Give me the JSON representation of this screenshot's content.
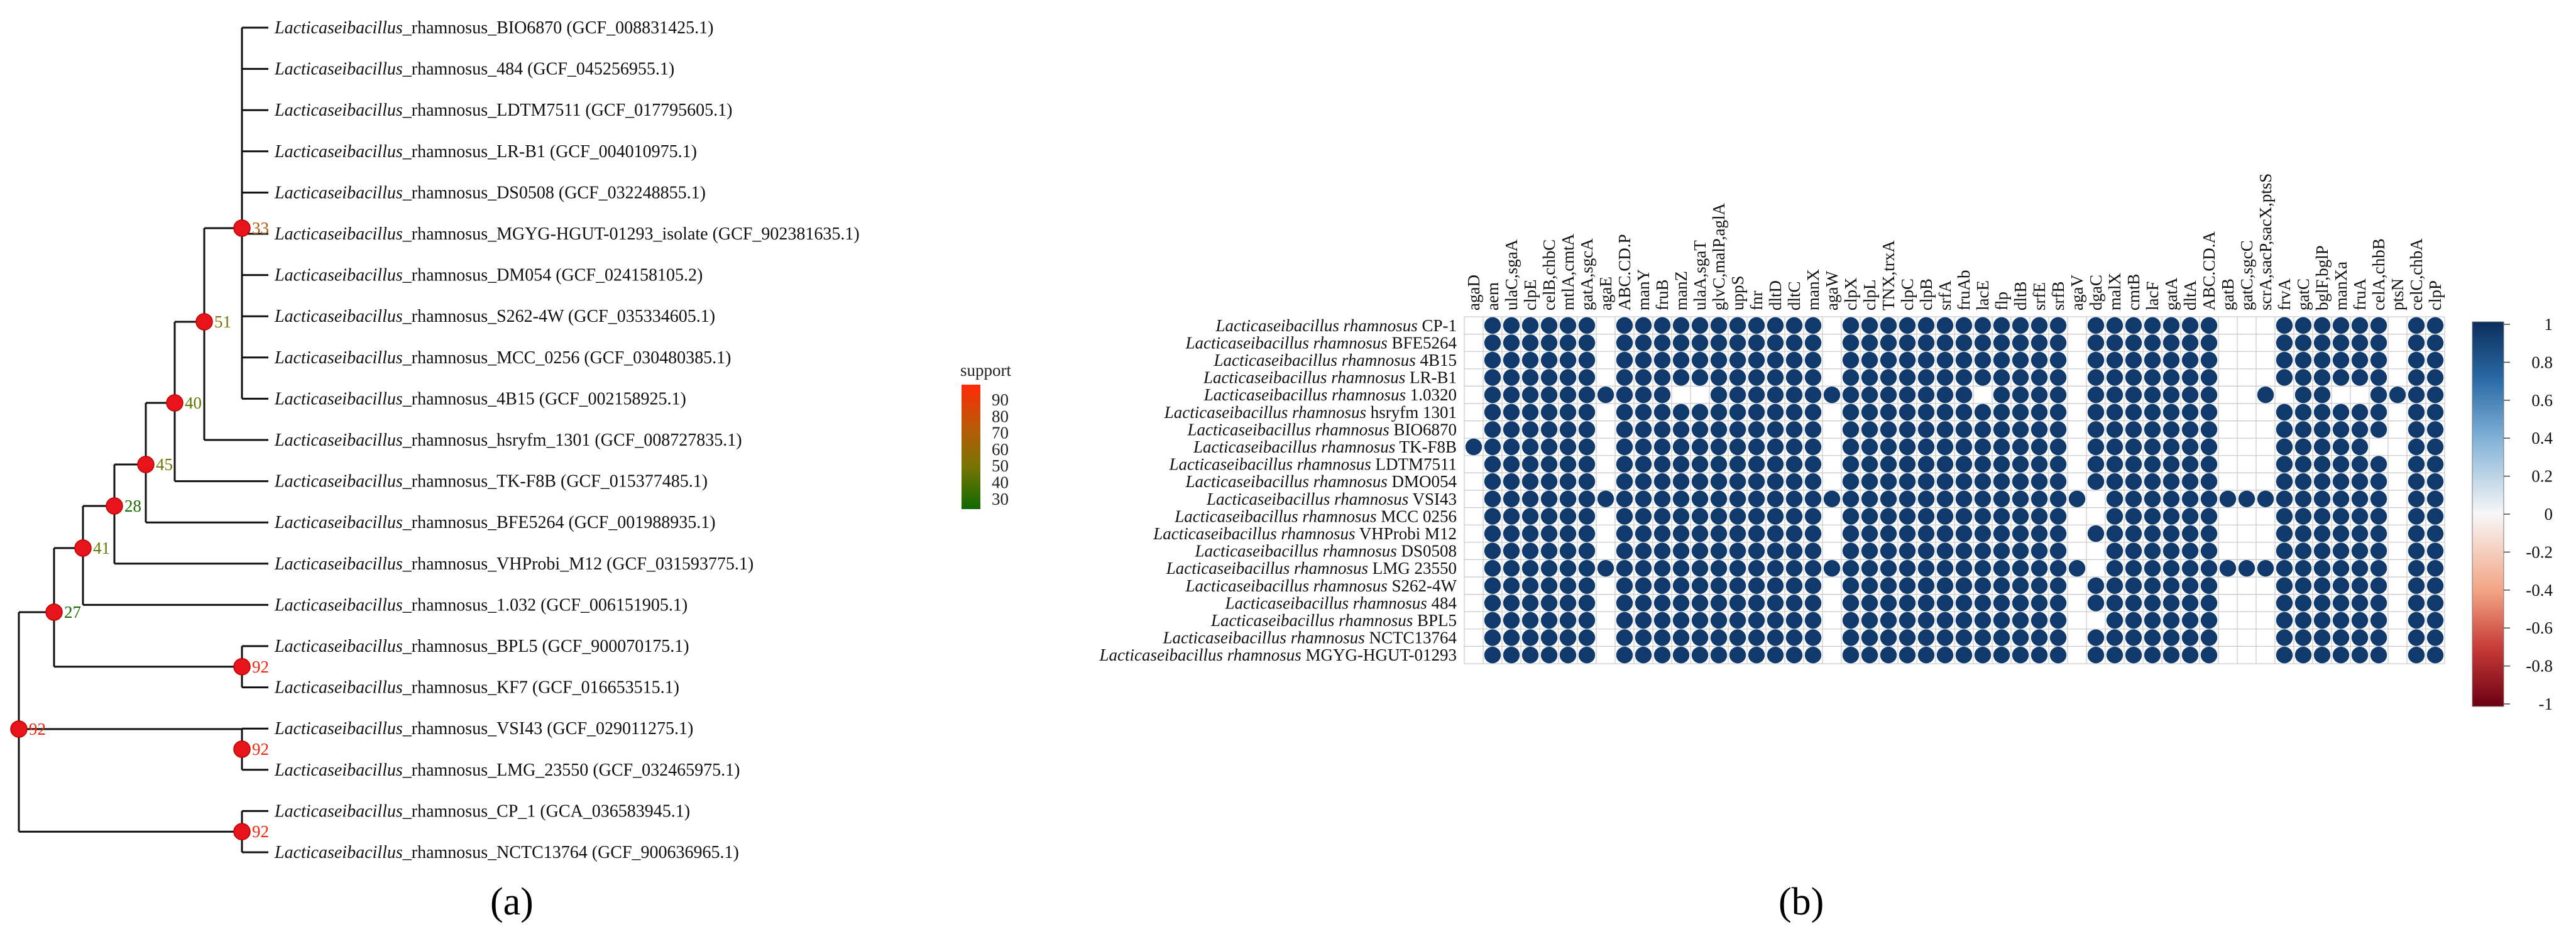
{
  "panel_a": {
    "label": "(a)",
    "support_legend": {
      "title": "support",
      "ticks": [
        "90",
        "80",
        "70",
        "60",
        "50",
        "40",
        "30"
      ],
      "colors": [
        "#f5240a",
        "#cc4a08",
        "#a96a05",
        "#866f04",
        "#5e7a03",
        "#357f02",
        "#1a6e01"
      ]
    },
    "tips": [
      {
        "genus": "Lacticaseibacillus",
        "name": "_rhamnosus_BIO6870",
        "acc": " (GCF_008831425.1)"
      },
      {
        "genus": "Lacticaseibacillus",
        "name": "_rhamnosus_484",
        "acc": " (GCF_045256955.1)"
      },
      {
        "genus": "Lacticaseibacillus",
        "name": "_rhamnosus_LDTM7511",
        "acc": " (GCF_017795605.1)"
      },
      {
        "genus": "Lacticaseibacillus",
        "name": "_rhamnosus_LR-B1",
        "acc": " (GCF_004010975.1)"
      },
      {
        "genus": "Lacticaseibacillus",
        "name": "_rhamnosus_DS0508",
        "acc": " (GCF_032248855.1)"
      },
      {
        "genus": "Lacticaseibacillus",
        "name": "_rhamnosus_MGYG-HGUT-01293_isolate",
        "acc": " (GCF_902381635.1)"
      },
      {
        "genus": "Lacticaseibacillus",
        "name": "_rhamnosus_DM054",
        "acc": " (GCF_024158105.2)"
      },
      {
        "genus": "Lacticaseibacillus",
        "name": "_rhamnosus_S262-4W",
        "acc": " (GCF_035334605.1)"
      },
      {
        "genus": "Lacticaseibacillus",
        "name": "_rhamnosus_MCC_0256",
        "acc": " (GCF_030480385.1)"
      },
      {
        "genus": "Lacticaseibacillus",
        "name": "_rhamnosus_4B15",
        "acc": " (GCF_002158925.1)"
      },
      {
        "genus": "Lacticaseibacillus",
        "name": "_rhamnosus_hsryfm_1301",
        "acc": " (GCF_008727835.1)"
      },
      {
        "genus": "Lacticaseibacillus",
        "name": "_rhamnosus_TK-F8B",
        "acc": " (GCF_015377485.1)"
      },
      {
        "genus": "Lacticaseibacillus",
        "name": "_rhamnosus_BFE5264",
        "acc": " (GCF_001988935.1)"
      },
      {
        "genus": "Lacticaseibacillus",
        "name": "_rhamnosus_VHProbi_M12",
        "acc": " (GCF_031593775.1)"
      },
      {
        "genus": "Lacticaseibacillus",
        "name": "_rhamnosus_1.032",
        "acc": " (GCF_006151905.1)"
      },
      {
        "genus": "Lacticaseibacillus",
        "name": "_rhamnosus_BPL5",
        "acc": " (GCF_900070175.1)"
      },
      {
        "genus": "Lacticaseibacillus",
        "name": "_rhamnosus_KF7",
        "acc": " (GCF_016653515.1)"
      },
      {
        "genus": "Lacticaseibacillus",
        "name": "_rhamnosus_VSI43",
        "acc": " (GCF_029011275.1)"
      },
      {
        "genus": "Lacticaseibacillus",
        "name": "_rhamnosus_LMG_23550",
        "acc": " (GCF_032465975.1)"
      },
      {
        "genus": "Lacticaseibacillus",
        "name": "_rhamnosus_CP_1",
        "acc": " (GCA_036583945.1)"
      },
      {
        "genus": "Lacticaseibacillus",
        "name": "_rhamnosus_NCTC13764",
        "acc": " (GCF_900636965.1)"
      }
    ],
    "nodes": [
      {
        "id": "n33",
        "support": "33",
        "color": "#b0580f"
      },
      {
        "id": "n51",
        "support": "51",
        "color": "#867005"
      },
      {
        "id": "n40",
        "support": "40",
        "color": "#5e7a03"
      },
      {
        "id": "n45",
        "support": "45",
        "color": "#6f7a04"
      },
      {
        "id": "n28",
        "support": "28",
        "color": "#1a6e01"
      },
      {
        "id": "n41",
        "support": "41",
        "color": "#5e7a03"
      },
      {
        "id": "n27",
        "support": "27",
        "color": "#1a6e01"
      },
      {
        "id": "n92a",
        "support": "92",
        "color": "#f5240a"
      },
      {
        "id": "n92b",
        "support": "92",
        "color": "#f5240a"
      },
      {
        "id": "n92c",
        "support": "92",
        "color": "#f5240a"
      },
      {
        "id": "n92root",
        "support": "92",
        "color": "#f5240a"
      }
    ],
    "node_marker_color": "#e8141c"
  },
  "panel_b": {
    "label": "(b)",
    "genus": "Lacticaseibacillus rhamnosus",
    "rows": [
      "CP-1",
      "BFE5264",
      "4B15",
      "LR-B1",
      "1.0320",
      "hsryfm 1301",
      "BIO6870",
      "TK-F8B",
      "LDTM7511",
      "DMO054",
      "VSI43",
      "MCC 0256",
      "VHProbi M12",
      "DS0508",
      "LMG 23550",
      "S262-4W",
      "484",
      "BPL5",
      "NCTC13764",
      "MGYG-HGUT-01293"
    ],
    "columns": [
      "agaD",
      "aem",
      "ulaC,sgaA",
      "clpE",
      "celB,chbC",
      "mtlA,cmtA",
      "gatA,sgcA",
      "agaE",
      "ABC.CD.P",
      "manY",
      "fruB",
      "manZ",
      "ulaA,sgaT",
      "glvC,malP,aglA",
      "uppS",
      "fnr",
      "dltD",
      "dltC",
      "manX",
      "agaW",
      "clpX",
      "clpL",
      "TNX,trxA",
      "clpC",
      "clpB",
      "srfA",
      "fruAb",
      "lacE",
      "flp",
      "dltB",
      "srfE",
      "srfB",
      "agaV",
      "dgaC",
      "malX",
      "cmtB",
      "lacF",
      "gatA",
      "dltA",
      "ABC.CD.A",
      "gatB",
      "gatC,sgcC",
      "scrA,sacP,sacX,ptsS",
      "frvA",
      "gatC",
      "bglF,bglP",
      "manXa",
      "fruA",
      "celA,chbB",
      "ptsN",
      "celC,chbA",
      "clpP"
    ],
    "empty_cells": [
      [
        0,
        0
      ],
      [
        1,
        0
      ],
      [
        2,
        0
      ],
      [
        3,
        0
      ],
      [
        4,
        0
      ],
      [
        5,
        0
      ],
      [
        6,
        0
      ],
      [
        8,
        0
      ],
      [
        9,
        0
      ],
      [
        10,
        0
      ],
      [
        11,
        0
      ],
      [
        12,
        0
      ],
      [
        13,
        0
      ],
      [
        14,
        0
      ],
      [
        15,
        0
      ],
      [
        16,
        0
      ],
      [
        17,
        0
      ],
      [
        18,
        0
      ],
      [
        19,
        0
      ],
      [
        0,
        7
      ],
      [
        1,
        7
      ],
      [
        2,
        7
      ],
      [
        3,
        7
      ],
      [
        5,
        7
      ],
      [
        6,
        7
      ],
      [
        7,
        7
      ],
      [
        8,
        7
      ],
      [
        9,
        7
      ],
      [
        11,
        7
      ],
      [
        12,
        7
      ],
      [
        13,
        7
      ],
      [
        15,
        7
      ],
      [
        16,
        7
      ],
      [
        17,
        7
      ],
      [
        18,
        7
      ],
      [
        19,
        7
      ],
      [
        4,
        11
      ],
      [
        4,
        12
      ],
      [
        4,
        27
      ],
      [
        0,
        19
      ],
      [
        1,
        19
      ],
      [
        2,
        19
      ],
      [
        3,
        19
      ],
      [
        5,
        19
      ],
      [
        6,
        19
      ],
      [
        7,
        19
      ],
      [
        8,
        19
      ],
      [
        9,
        19
      ],
      [
        11,
        19
      ],
      [
        12,
        19
      ],
      [
        13,
        19
      ],
      [
        15,
        19
      ],
      [
        16,
        19
      ],
      [
        17,
        19
      ],
      [
        18,
        19
      ],
      [
        19,
        19
      ],
      [
        0,
        32
      ],
      [
        1,
        32
      ],
      [
        2,
        32
      ],
      [
        3,
        32
      ],
      [
        4,
        32
      ],
      [
        5,
        32
      ],
      [
        6,
        32
      ],
      [
        7,
        32
      ],
      [
        8,
        32
      ],
      [
        9,
        32
      ],
      [
        11,
        32
      ],
      [
        12,
        32
      ],
      [
        13,
        32
      ],
      [
        15,
        32
      ],
      [
        16,
        32
      ],
      [
        17,
        32
      ],
      [
        18,
        32
      ],
      [
        19,
        32
      ],
      [
        10,
        33
      ],
      [
        11,
        33
      ],
      [
        13,
        33
      ],
      [
        14,
        33
      ],
      [
        17,
        33
      ],
      [
        0,
        40
      ],
      [
        1,
        40
      ],
      [
        2,
        40
      ],
      [
        3,
        40
      ],
      [
        4,
        40
      ],
      [
        5,
        40
      ],
      [
        6,
        40
      ],
      [
        7,
        40
      ],
      [
        8,
        40
      ],
      [
        9,
        40
      ],
      [
        11,
        40
      ],
      [
        12,
        40
      ],
      [
        13,
        40
      ],
      [
        15,
        40
      ],
      [
        16,
        40
      ],
      [
        17,
        40
      ],
      [
        18,
        40
      ],
      [
        19,
        40
      ],
      [
        0,
        41
      ],
      [
        1,
        41
      ],
      [
        2,
        41
      ],
      [
        3,
        41
      ],
      [
        4,
        41
      ],
      [
        5,
        41
      ],
      [
        6,
        41
      ],
      [
        7,
        41
      ],
      [
        8,
        41
      ],
      [
        9,
        41
      ],
      [
        11,
        41
      ],
      [
        12,
        41
      ],
      [
        13,
        41
      ],
      [
        15,
        41
      ],
      [
        16,
        41
      ],
      [
        17,
        41
      ],
      [
        18,
        41
      ],
      [
        19,
        41
      ],
      [
        0,
        42
      ],
      [
        1,
        42
      ],
      [
        2,
        42
      ],
      [
        3,
        42
      ],
      [
        5,
        42
      ],
      [
        6,
        42
      ],
      [
        7,
        42
      ],
      [
        8,
        42
      ],
      [
        9,
        42
      ],
      [
        11,
        42
      ],
      [
        12,
        42
      ],
      [
        13,
        42
      ],
      [
        15,
        42
      ],
      [
        16,
        42
      ],
      [
        17,
        42
      ],
      [
        18,
        42
      ],
      [
        19,
        42
      ],
      [
        4,
        43
      ],
      [
        4,
        46
      ],
      [
        4,
        47
      ],
      [
        7,
        48
      ],
      [
        7,
        49
      ],
      [
        0,
        49
      ],
      [
        1,
        49
      ],
      [
        2,
        49
      ],
      [
        3,
        49
      ],
      [
        5,
        49
      ],
      [
        6,
        49
      ],
      [
        8,
        49
      ],
      [
        9,
        49
      ],
      [
        10,
        49
      ],
      [
        11,
        49
      ],
      [
        12,
        49
      ],
      [
        13,
        49
      ],
      [
        14,
        49
      ],
      [
        15,
        49
      ],
      [
        16,
        49
      ],
      [
        17,
        49
      ],
      [
        18,
        49
      ],
      [
        19,
        49
      ]
    ],
    "dot_color": "#103a6c",
    "colorbar": {
      "ticks": [
        "1",
        "0.8",
        "0.6",
        "0.4",
        "0.2",
        "0",
        "-0.2",
        "-0.4",
        "-0.6",
        "-0.8",
        "-1"
      ],
      "top_color": "#0c2f5c",
      "mid_color": "#f7f7f7",
      "bottom_color": "#6c0012"
    }
  }
}
